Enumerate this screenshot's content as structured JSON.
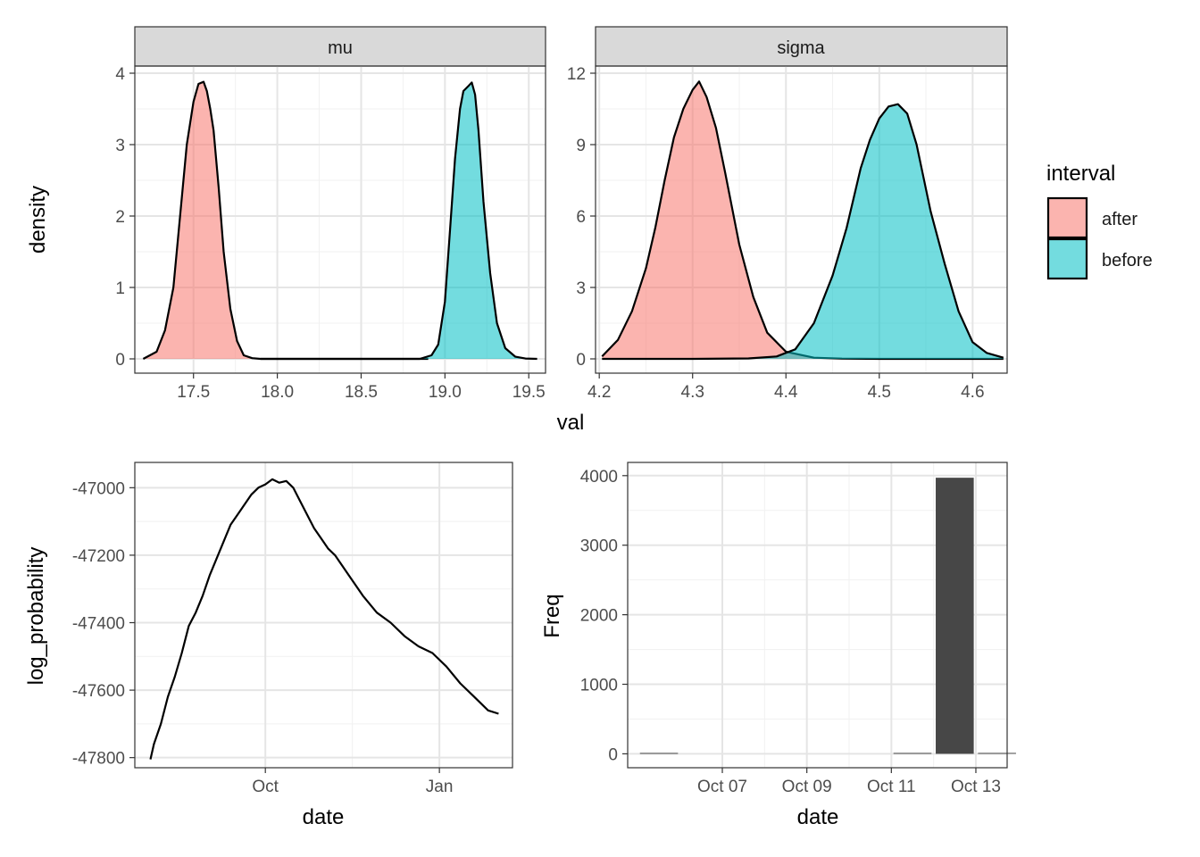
{
  "chart_data": [
    {
      "type": "area",
      "panel": "density-facets",
      "ylabel": "density",
      "xlabel": "val",
      "legend": {
        "title": "interval",
        "position": "right",
        "entries": [
          {
            "label": "after",
            "color": "#F8766D"
          },
          {
            "label": "before",
            "color": "#00BFC4"
          }
        ]
      },
      "facets": [
        {
          "strip": "mu",
          "xlim": [
            17.15,
            19.6
          ],
          "ylim": [
            -0.2,
            4.1
          ],
          "x_ticks": [
            17.5,
            18.0,
            18.5,
            19.0,
            19.5
          ],
          "x_tick_labels": [
            "17.5",
            "18.0",
            "18.5",
            "19.0",
            "19.5"
          ],
          "y_ticks": [
            0,
            1,
            2,
            3,
            4
          ],
          "y_tick_labels": [
            "0",
            "1",
            "2",
            "3",
            "4"
          ],
          "series": [
            {
              "name": "after",
              "color": "#F8766D",
              "x": [
                17.2,
                17.28,
                17.33,
                17.38,
                17.42,
                17.46,
                17.5,
                17.53,
                17.56,
                17.58,
                17.6,
                17.62,
                17.65,
                17.68,
                17.72,
                17.76,
                17.8,
                17.85,
                17.9,
                18.0,
                18.5,
                18.9
              ],
              "y": [
                0,
                0.1,
                0.4,
                1.0,
                2.0,
                3.0,
                3.6,
                3.85,
                3.88,
                3.75,
                3.5,
                3.2,
                2.4,
                1.5,
                0.7,
                0.25,
                0.05,
                0.01,
                0,
                0,
                0,
                0
              ]
            },
            {
              "name": "before",
              "color": "#00BFC4",
              "x": [
                17.9,
                18.5,
                18.85,
                18.92,
                18.96,
                19.0,
                19.03,
                19.06,
                19.09,
                19.11,
                19.14,
                19.16,
                19.18,
                19.2,
                19.23,
                19.27,
                19.31,
                19.36,
                19.42,
                19.48,
                19.55
              ],
              "y": [
                0,
                0,
                0,
                0.05,
                0.2,
                0.8,
                1.8,
                2.8,
                3.5,
                3.75,
                3.82,
                3.87,
                3.7,
                3.2,
                2.2,
                1.2,
                0.5,
                0.15,
                0.03,
                0.005,
                0
              ]
            }
          ]
        },
        {
          "strip": "sigma",
          "xlim": [
            4.196,
            4.637
          ],
          "ylim": [
            -0.6,
            12.3
          ],
          "x_ticks": [
            4.2,
            4.3,
            4.4,
            4.5,
            4.6
          ],
          "x_tick_labels": [
            "4.2",
            "4.3",
            "4.4",
            "4.5",
            "4.6"
          ],
          "y_ticks": [
            0,
            3,
            6,
            9,
            12
          ],
          "y_tick_labels": [
            "0",
            "3",
            "6",
            "9",
            "12"
          ],
          "series": [
            {
              "name": "after",
              "color": "#F8766D",
              "x": [
                4.203,
                4.22,
                4.235,
                4.25,
                4.26,
                4.27,
                4.28,
                4.29,
                4.3,
                4.307,
                4.315,
                4.325,
                4.335,
                4.35,
                4.365,
                4.38,
                4.4,
                4.43,
                4.46,
                4.5,
                4.55,
                4.6,
                4.633
              ],
              "y": [
                0.1,
                0.8,
                2.0,
                3.8,
                5.5,
                7.5,
                9.3,
                10.5,
                11.3,
                11.65,
                11.0,
                9.7,
                7.8,
                4.8,
                2.6,
                1.1,
                0.3,
                0.05,
                0.01,
                0,
                0,
                0,
                0
              ]
            },
            {
              "name": "before",
              "color": "#00BFC4",
              "x": [
                4.203,
                4.3,
                4.36,
                4.39,
                4.41,
                4.43,
                4.45,
                4.465,
                4.48,
                4.49,
                4.5,
                4.51,
                4.52,
                4.53,
                4.54,
                4.555,
                4.57,
                4.585,
                4.6,
                4.615,
                4.633
              ],
              "y": [
                0,
                0,
                0.02,
                0.1,
                0.4,
                1.5,
                3.5,
                5.5,
                8.0,
                9.2,
                10.1,
                10.6,
                10.7,
                10.3,
                9.0,
                6.2,
                4.0,
                2.0,
                0.7,
                0.25,
                0.05
              ]
            }
          ]
        }
      ]
    },
    {
      "type": "line",
      "panel": "log-probability",
      "xlabel": "date",
      "ylabel": "log_probability",
      "xlim": [
        -75,
        142
      ],
      "x_is_day_offset_from": "Oct",
      "x_ticks": [
        0,
        100
      ],
      "x_tick_labels": [
        "Oct",
        "Jan"
      ],
      "ylim": [
        -47830,
        -46925
      ],
      "y_ticks": [
        -47000,
        -47200,
        -47400,
        -47600,
        -47800
      ],
      "y_tick_labels": [
        "-47000",
        "-47200",
        "-47400",
        "-47600",
        "-47800"
      ],
      "series": [
        {
          "name": "",
          "color": "#000000",
          "x": [
            -66,
            -64,
            -60,
            -56,
            -52,
            -48,
            -44,
            -40,
            -36,
            -32,
            -28,
            -24,
            -20,
            -16,
            -12,
            -8,
            -4,
            0,
            4,
            8,
            12,
            16,
            20,
            24,
            28,
            32,
            36,
            40,
            48,
            56,
            64,
            72,
            80,
            88,
            96,
            104,
            112,
            120,
            128,
            134
          ],
          "y": [
            -47805,
            -47760,
            -47700,
            -47620,
            -47560,
            -47490,
            -47410,
            -47370,
            -47320,
            -47260,
            -47210,
            -47160,
            -47110,
            -47080,
            -47050,
            -47020,
            -47000,
            -46990,
            -46975,
            -46985,
            -46980,
            -47000,
            -47040,
            -47080,
            -47120,
            -47150,
            -47180,
            -47200,
            -47260,
            -47320,
            -47370,
            -47400,
            -47440,
            -47470,
            -47490,
            -47530,
            -47580,
            -47620,
            -47660,
            -47670
          ]
        }
      ]
    },
    {
      "type": "bar",
      "panel": "freq",
      "xlabel": "date",
      "ylabel": "Freq",
      "xlim": [
        4.76,
        13.74
      ],
      "x_is_day_of": "October",
      "x_ticks": [
        7,
        9,
        11,
        13
      ],
      "x_tick_labels": [
        "Oct 07",
        "Oct 09",
        "Oct 11",
        "Oct 13"
      ],
      "ylim": [
        -200,
        4190
      ],
      "y_ticks": [
        0,
        1000,
        2000,
        3000,
        4000
      ],
      "y_tick_labels": [
        "0",
        "1000",
        "2000",
        "3000",
        "4000"
      ],
      "bar_width_days": 0.9,
      "categories": [
        "Oct 05",
        "Oct 11",
        "Oct 12",
        "Oct 13"
      ],
      "x": [
        5.5,
        11.5,
        12.5,
        13.5
      ],
      "values": [
        10,
        10,
        3970,
        10
      ],
      "color": "#474747"
    }
  ]
}
